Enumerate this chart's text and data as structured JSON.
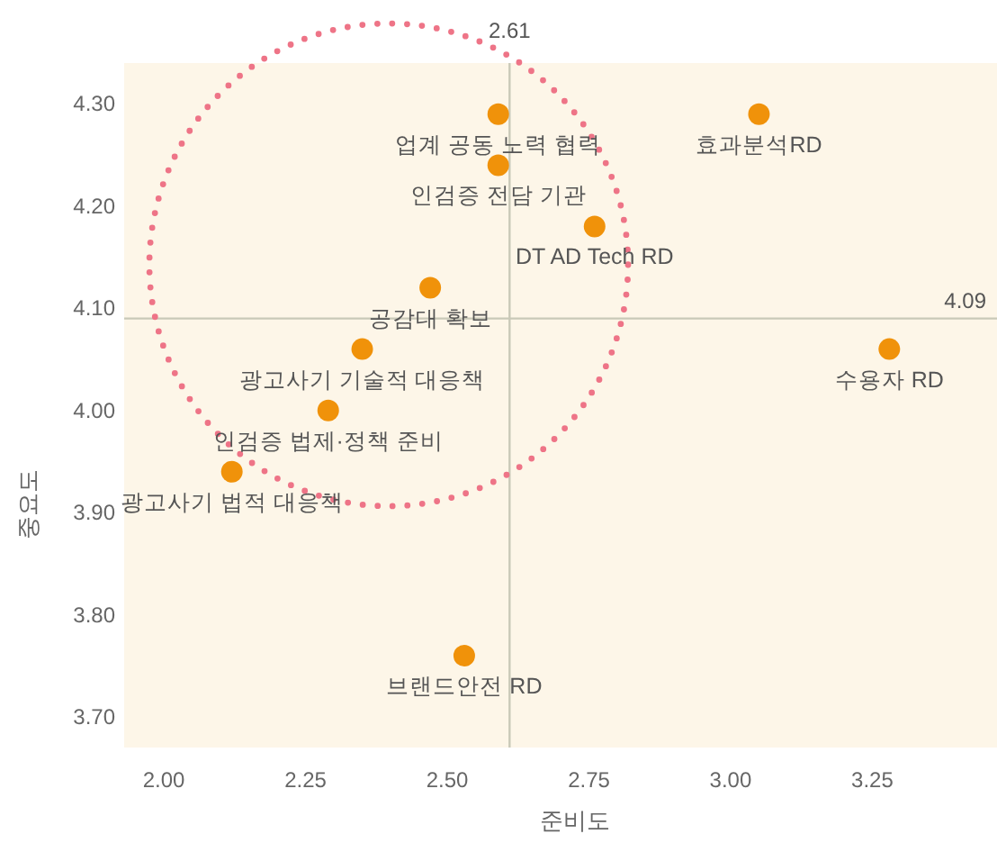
{
  "chart_data": {
    "type": "scatter",
    "xlabel": "준비도",
    "ylabel": "중요도",
    "x": [
      2.59,
      3.05,
      2.59,
      2.76,
      2.47,
      2.35,
      3.28,
      2.29,
      2.12,
      2.53
    ],
    "series": [
      {
        "color": "#f0920a",
        "values": [
          4.29,
          4.29,
          4.24,
          4.18,
          4.12,
          4.06,
          4.06,
          4.0,
          3.94,
          3.76
        ]
      }
    ],
    "marker": "circle",
    "xlim": [
      1.93,
      3.47
    ],
    "ylim": [
      3.67,
      4.34
    ],
    "xticks": [
      {
        "value": 2,
        "label": "2.00"
      },
      {
        "value": 2.25,
        "label": "2.25"
      },
      {
        "value": 2.5,
        "label": "2.50"
      },
      {
        "value": 2.75,
        "label": "2.75"
      },
      {
        "value": 3,
        "label": "3.00"
      },
      {
        "value": 3.25,
        "label": "3.25"
      }
    ],
    "yticks": [
      {
        "value": 3.7,
        "label": "3.70"
      },
      {
        "value": 3.8,
        "label": "3.80"
      },
      {
        "value": 3.9,
        "label": "3.90"
      },
      {
        "value": 4,
        "label": "4.00"
      },
      {
        "value": 4.1,
        "label": "4.10"
      },
      {
        "value": 4.2,
        "label": "4.20"
      },
      {
        "value": 4.3,
        "label": "4.30"
      }
    ],
    "ref_lines": [
      {
        "axis": "x",
        "value": 2.61,
        "label": "2.61",
        "color": "#c9c9b8"
      },
      {
        "axis": "y",
        "value": 4.09,
        "label": "4.09",
        "color": "#c9c9b8"
      }
    ],
    "annotations": [
      {
        "text": "업계 공동 노력 협력",
        "x": 2.59,
        "y": 4.29
      },
      {
        "text": "효과분석RD",
        "x": 3.05,
        "y": 4.29
      },
      {
        "text": "인검증 전담 기관",
        "x": 2.59,
        "y": 4.24
      },
      {
        "text": "DT AD Tech RD",
        "x": 2.76,
        "y": 4.18
      },
      {
        "text": "공감대 확보",
        "x": 2.47,
        "y": 4.12
      },
      {
        "text": "광고사기 기술적 대응책",
        "x": 2.35,
        "y": 4.06
      },
      {
        "text": "수용자 RD",
        "x": 3.28,
        "y": 4.06
      },
      {
        "text": "인검증 법제·정책 준비",
        "x": 2.29,
        "y": 4.0
      },
      {
        "text": "광고사기 법적 대응책",
        "x": 2.12,
        "y": 3.94
      },
      {
        "text": "브랜드안전 RD",
        "x": 2.53,
        "y": 3.76
      }
    ]
  }
}
